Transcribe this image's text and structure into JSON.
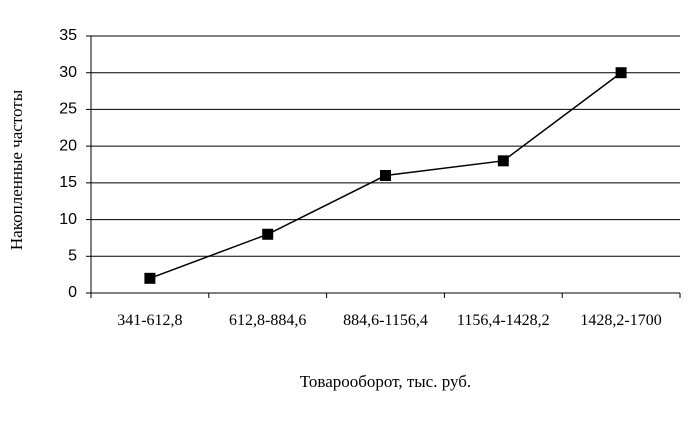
{
  "chart_data": {
    "type": "line",
    "y_label": "Накопленные частоты",
    "x_label": "Товарооборот, тыс. руб.",
    "categories": [
      "341-612,8",
      "612,8-884,6",
      "884,6-1156,4",
      "1156,4-1428,2",
      "1428,2-1700"
    ],
    "series": [
      {
        "name": "Накопленные частоты",
        "color": "#000000",
        "values": [
          2,
          8,
          16,
          18,
          30
        ]
      }
    ],
    "ylim": [
      0,
      35
    ],
    "yticks": [
      0,
      5,
      10,
      15,
      20,
      25,
      30,
      35
    ],
    "grid": true
  }
}
